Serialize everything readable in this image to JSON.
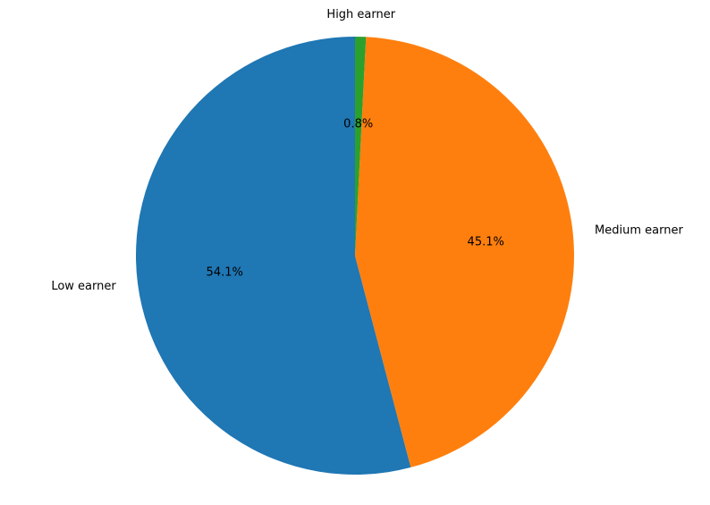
{
  "chart_data": {
    "type": "pie",
    "categories": [
      "Low earner",
      "Medium earner",
      "High earner"
    ],
    "values": [
      54.1,
      45.1,
      0.8
    ],
    "percent_labels": [
      "54.1%",
      "45.1%",
      "0.8%"
    ],
    "colors": [
      "#1f77b4",
      "#ff7f0e",
      "#2ca02c"
    ],
    "start_angle_deg": 90,
    "direction": "counterclockwise",
    "title": "",
    "legend": "none"
  }
}
